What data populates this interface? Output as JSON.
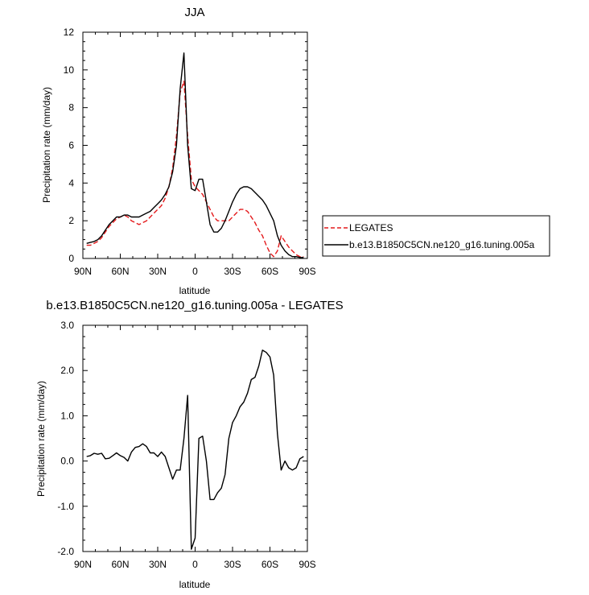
{
  "chart_data": [
    {
      "type": "line",
      "title": "JJA",
      "xlabel": "latitude",
      "ylabel": "Precipitation rate (mm/day)",
      "xlim": [
        -90,
        90
      ],
      "ylim": [
        0,
        12
      ],
      "x_ticks": [
        -90,
        -60,
        -30,
        0,
        30,
        60,
        90
      ],
      "x_tick_labels": [
        "90N",
        "60N",
        "30N",
        "0",
        "30S",
        "60S",
        "90S"
      ],
      "y_ticks": [
        0,
        2,
        4,
        6,
        8,
        10,
        12
      ],
      "y_tick_labels": [
        "0",
        "2",
        "4",
        "6",
        "8",
        "10",
        "12"
      ],
      "legend_position": "right",
      "series": [
        {
          "name": "LEGATES",
          "color": "#e41a1c",
          "dash": "dashed",
          "x": [
            -87,
            -84,
            -81,
            -78,
            -75,
            -72,
            -69,
            -66,
            -63,
            -60,
            -57,
            -54,
            -51,
            -48,
            -45,
            -42,
            -39,
            -36,
            -33,
            -30,
            -27,
            -24,
            -21,
            -18,
            -15,
            -12,
            -9,
            -6,
            -3,
            0,
            3,
            6,
            9,
            12,
            15,
            18,
            21,
            24,
            27,
            30,
            33,
            36,
            39,
            42,
            45,
            48,
            51,
            54,
            57,
            60,
            63,
            66,
            69,
            72,
            75,
            78,
            81,
            84,
            87
          ],
          "y": [
            0.7,
            0.7,
            0.8,
            0.9,
            1.1,
            1.4,
            1.7,
            1.9,
            2.1,
            2.2,
            2.3,
            2.2,
            2.0,
            1.9,
            1.8,
            1.9,
            2.0,
            2.2,
            2.4,
            2.6,
            2.8,
            3.2,
            3.8,
            4.8,
            6.5,
            8.8,
            9.4,
            6.5,
            4.2,
            3.8,
            3.6,
            3.4,
            3.0,
            2.6,
            2.2,
            2.0,
            2.0,
            2.0,
            2.0,
            2.2,
            2.4,
            2.6,
            2.6,
            2.5,
            2.2,
            1.9,
            1.5,
            1.2,
            0.7,
            0.3,
            0.1,
            0.4,
            1.2,
            0.9,
            0.6,
            0.4,
            0.2,
            0.1,
            0.1
          ]
        },
        {
          "name": "b.e13.B1850C5CN.ne120_g16.tuning.005a",
          "color": "#000000",
          "dash": "solid",
          "x": [
            -87,
            -84,
            -81,
            -78,
            -75,
            -72,
            -69,
            -66,
            -63,
            -60,
            -57,
            -54,
            -51,
            -48,
            -45,
            -42,
            -39,
            -36,
            -33,
            -30,
            -27,
            -24,
            -21,
            -18,
            -15,
            -12,
            -9,
            -6,
            -3,
            0,
            3,
            6,
            9,
            12,
            15,
            18,
            21,
            24,
            27,
            30,
            33,
            36,
            39,
            42,
            45,
            48,
            51,
            54,
            57,
            60,
            63,
            66,
            69,
            72,
            75,
            78,
            81,
            84,
            87
          ],
          "y": [
            0.8,
            0.85,
            0.9,
            1.0,
            1.2,
            1.5,
            1.8,
            2.0,
            2.2,
            2.2,
            2.3,
            2.3,
            2.2,
            2.2,
            2.2,
            2.3,
            2.4,
            2.5,
            2.7,
            2.9,
            3.1,
            3.4,
            3.8,
            4.6,
            6.0,
            9.0,
            10.9,
            6.0,
            3.7,
            3.6,
            4.2,
            4.2,
            3.0,
            1.8,
            1.4,
            1.4,
            1.6,
            2.0,
            2.5,
            3.0,
            3.4,
            3.7,
            3.8,
            3.8,
            3.7,
            3.5,
            3.3,
            3.1,
            2.8,
            2.4,
            2.0,
            1.2,
            0.7,
            0.4,
            0.2,
            0.1,
            0.1,
            0.05,
            0.05
          ]
        }
      ]
    },
    {
      "type": "line",
      "title": "b.e13.B1850C5CN.ne120_g16.tuning.005a - LEGATES",
      "xlabel": "latitude",
      "ylabel": "Precipitation rate (mm/day)",
      "xlim": [
        -90,
        90
      ],
      "ylim": [
        -2,
        3
      ],
      "x_ticks": [
        -90,
        -60,
        -30,
        0,
        30,
        60,
        90
      ],
      "x_tick_labels": [
        "90N",
        "60N",
        "30N",
        "0",
        "30S",
        "60S",
        "90S"
      ],
      "y_ticks": [
        -2,
        -1,
        0,
        1,
        2,
        3
      ],
      "y_tick_labels": [
        "-2.0",
        "-1.0",
        "0.0",
        "1.0",
        "2.0",
        "3.0"
      ],
      "series": [
        {
          "color": "#000000",
          "dash": "solid",
          "x": [
            -87,
            -84,
            -81,
            -78,
            -75,
            -72,
            -69,
            -66,
            -63,
            -60,
            -57,
            -54,
            -51,
            -48,
            -45,
            -42,
            -39,
            -36,
            -33,
            -30,
            -27,
            -24,
            -21,
            -18,
            -15,
            -12,
            -9,
            -6,
            -3,
            0,
            3,
            6,
            9,
            12,
            15,
            18,
            21,
            24,
            27,
            30,
            33,
            36,
            39,
            42,
            45,
            48,
            51,
            54,
            57,
            60,
            63,
            66,
            69,
            72,
            75,
            78,
            81,
            84,
            87
          ],
          "y": [
            0.1,
            0.12,
            0.17,
            0.15,
            0.17,
            0.05,
            0.06,
            0.12,
            0.18,
            0.12,
            0.08,
            0.0,
            0.2,
            0.3,
            0.32,
            0.38,
            0.32,
            0.18,
            0.18,
            0.1,
            0.2,
            0.1,
            -0.15,
            -0.4,
            -0.2,
            -0.2,
            0.5,
            1.45,
            -1.95,
            -1.7,
            0.5,
            0.55,
            0.0,
            -0.85,
            -0.85,
            -0.7,
            -0.6,
            -0.3,
            0.5,
            0.85,
            1.0,
            1.2,
            1.3,
            1.5,
            1.8,
            1.85,
            2.1,
            2.45,
            2.4,
            2.3,
            1.9,
            0.6,
            -0.2,
            0.0,
            -0.15,
            -0.2,
            -0.15,
            0.05,
            0.1
          ]
        }
      ]
    }
  ]
}
